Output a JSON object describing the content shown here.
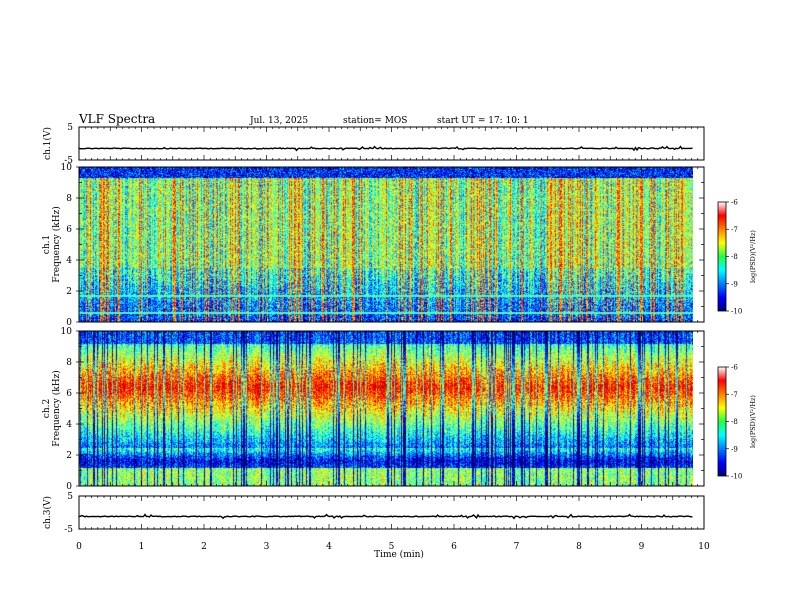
{
  "header": {
    "title": "VLF Spectra",
    "date": "Jul. 13, 2025",
    "station": "station= MOS",
    "start": "start UT = 17: 10: 1"
  },
  "chart_data": [
    {
      "type": "line",
      "name": "ch1-waveform",
      "ylabel": "ch.1(V)",
      "ylim": [
        -5,
        5
      ],
      "yticks": [
        "5",
        "-5"
      ],
      "xlim": [
        0,
        10
      ],
      "level": -1.5
    },
    {
      "type": "heatmap",
      "name": "ch1-spectrogram",
      "ylabel": "ch.1\nFrequency (kHz)",
      "yticks": [
        "0",
        "2",
        "4",
        "6",
        "8",
        "10"
      ],
      "ylim": [
        0,
        10
      ],
      "xlim": [
        0,
        9.83
      ],
      "colorbar": {
        "label": "log(PSD)(V²/Hz)",
        "ticks": [
          "-6",
          "-7",
          "-8",
          "-9",
          "-10"
        ],
        "range": [
          -10,
          -6
        ]
      }
    },
    {
      "type": "heatmap",
      "name": "ch2-spectrogram",
      "ylabel": "ch.2\nFrequency (kHz)",
      "yticks": [
        "0",
        "2",
        "4",
        "6",
        "8",
        "10"
      ],
      "ylim": [
        0,
        10
      ],
      "xlim": [
        0,
        9.83
      ],
      "colorbar": {
        "label": "log(PSD)(V²/Hz)",
        "ticks": [
          "-6",
          "-7",
          "-8",
          "-9",
          "-10"
        ],
        "range": [
          -10,
          -6
        ]
      }
    },
    {
      "type": "line",
      "name": "ch3-waveform",
      "ylabel": "ch.3(V)",
      "ylim": [
        -5,
        5
      ],
      "yticks": [
        "5",
        "-5"
      ],
      "xlim": [
        0,
        10
      ],
      "level": -1.2
    }
  ],
  "xaxis": {
    "label": "Time (min)",
    "ticks": [
      "0",
      "1",
      "2",
      "3",
      "4",
      "5",
      "6",
      "7",
      "8",
      "9",
      "10"
    ]
  },
  "colors": {
    "frame": "#000000",
    "background": "#ffffff"
  }
}
